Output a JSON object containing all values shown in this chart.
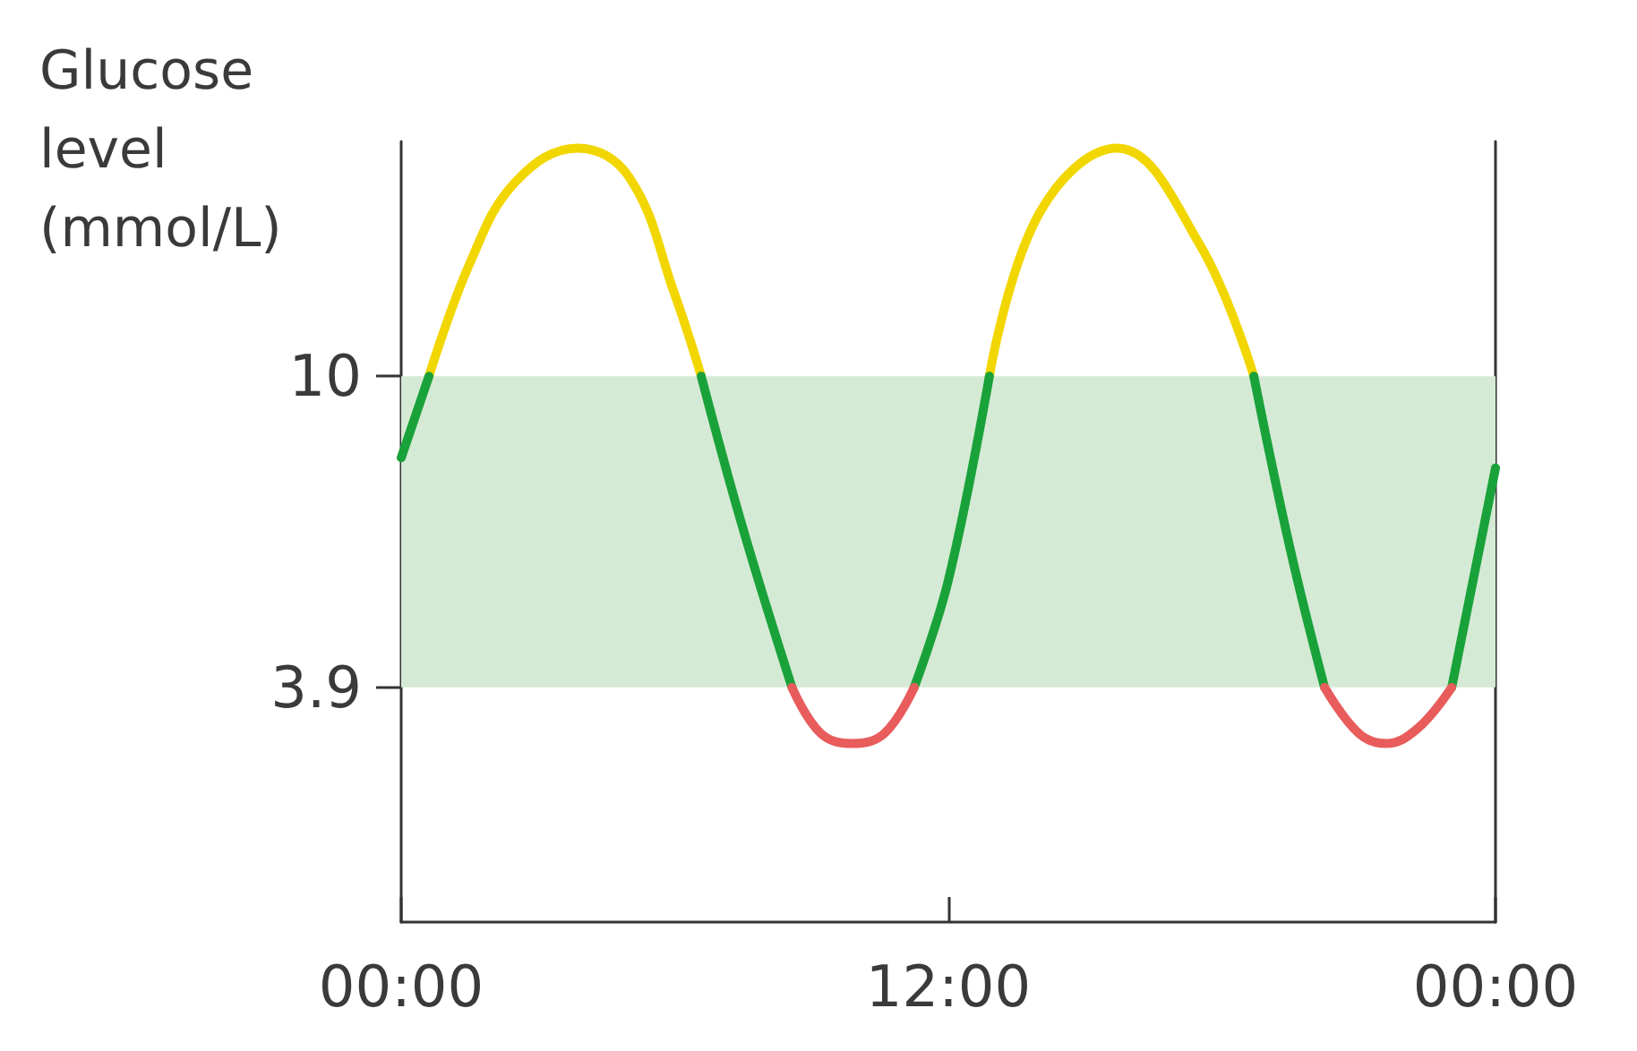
{
  "chart_data": {
    "type": "line",
    "ylabel": "Glucose level (mmol/L)",
    "x": [
      0,
      0.61,
      1.5,
      2.5,
      3.87,
      5,
      6,
      6.58,
      7.5,
      8.57,
      9.2,
      9.9,
      10.6,
      11.25,
      12,
      12.9,
      14,
      15.7,
      17.5,
      18.7,
      19.5,
      20.25,
      21,
      21.6,
      22.3,
      23.04,
      24
    ],
    "series": [
      {
        "color": "#f2d600",
        "values": [
          null,
          10,
          12.2,
          13.8,
          14.47,
          13.9,
          11.6,
          10,
          null,
          null,
          null,
          null,
          null,
          null,
          null,
          10,
          13.2,
          14.47,
          12.6,
          10,
          null,
          null,
          null,
          null,
          null,
          null,
          null
        ]
      },
      {
        "color": "#1aa23a",
        "values": [
          8.4,
          10,
          null,
          null,
          null,
          null,
          null,
          10,
          7.0,
          3.9,
          null,
          null,
          null,
          3.9,
          6.0,
          10,
          null,
          null,
          null,
          10,
          6.6,
          3.9,
          null,
          null,
          null,
          3.9,
          8.2
        ]
      },
      {
        "color": "#e85c5c",
        "values": [
          null,
          null,
          null,
          null,
          null,
          null,
          null,
          null,
          null,
          3.9,
          3.0,
          2.8,
          3.0,
          3.9,
          null,
          null,
          null,
          null,
          null,
          null,
          null,
          3.9,
          3.0,
          2.8,
          3.1,
          3.9,
          null
        ]
      }
    ],
    "xlim": [
      0,
      24
    ],
    "xticks": [
      {
        "value": 0,
        "label": "00:00"
      },
      {
        "value": 12,
        "label": "12:00"
      },
      {
        "value": 24,
        "label": "00:00"
      }
    ],
    "ylim": [
      -0.7,
      14.6
    ],
    "yticks": [
      3.9,
      10
    ],
    "bands": [
      {
        "axis": "y",
        "from": 3.9,
        "to": 10,
        "color": "#d5ead5"
      }
    ],
    "grid": false,
    "marker": "none",
    "line_style": "solid"
  }
}
